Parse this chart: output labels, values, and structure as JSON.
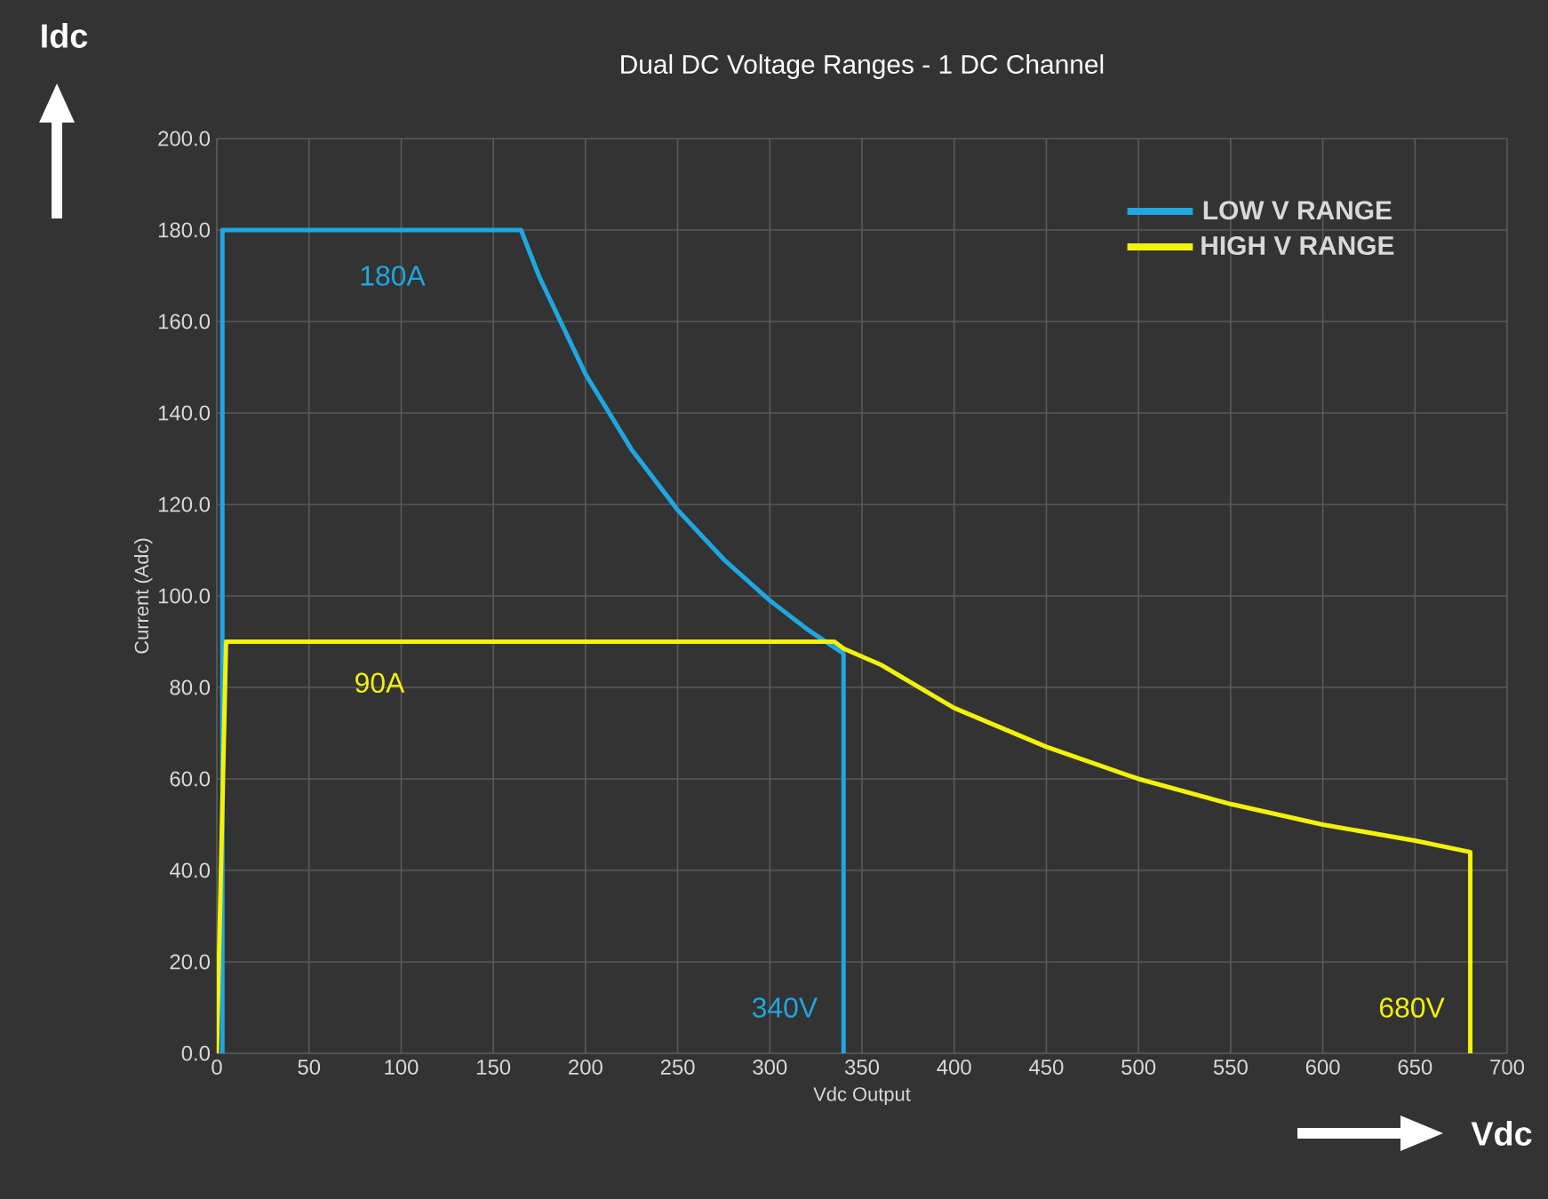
{
  "chart_data": {
    "type": "line",
    "title": "Dual DC Voltage Ranges - 1 DC Channel",
    "xlabel": "Vdc Output",
    "ylabel": "Current (Adc)",
    "series": [
      {
        "name": "LOW V RANGE",
        "color": "#1ea7e1",
        "x": [
          3,
          3,
          165,
          175,
          200,
          225,
          250,
          275,
          300,
          320,
          340,
          340
        ],
        "values": [
          0,
          180,
          180,
          169.7,
          148.5,
          132,
          118.8,
          108,
          99,
          92.8,
          87.4,
          0
        ]
      },
      {
        "name": "HIGH V RANGE",
        "color": "#f2f20a",
        "x": [
          0,
          5,
          335,
          340,
          360,
          400,
          450,
          500,
          550,
          600,
          650,
          680,
          680
        ],
        "values": [
          0,
          90,
          90,
          88.5,
          85,
          75.5,
          67,
          60,
          54.5,
          50,
          46.5,
          44,
          0
        ]
      }
    ],
    "xlim": [
      0,
      700
    ],
    "xticks": [
      0,
      50,
      100,
      150,
      200,
      250,
      300,
      350,
      400,
      450,
      500,
      550,
      600,
      650,
      700
    ],
    "ylim": [
      0,
      200
    ],
    "yticks": [
      {
        "value": 0,
        "label": "0.0"
      },
      {
        "value": 20,
        "label": "20.0"
      },
      {
        "value": 40,
        "label": "40.0"
      },
      {
        "value": 60,
        "label": "60.0"
      },
      {
        "value": 80,
        "label": "80.0"
      },
      {
        "value": 100,
        "label": "100.0"
      },
      {
        "value": 120,
        "label": "120.0"
      },
      {
        "value": 140,
        "label": "140.0"
      },
      {
        "value": 160,
        "label": "160.0"
      },
      {
        "value": 180,
        "label": "180.0"
      },
      {
        "value": 200,
        "label": "200.0"
      }
    ],
    "annotations": [
      "180A",
      "340V",
      "90A",
      "680V",
      "Idc",
      "Vdc"
    ],
    "grid": true,
    "legend": "top right",
    "marker": "none",
    "line_style": "solid"
  }
}
